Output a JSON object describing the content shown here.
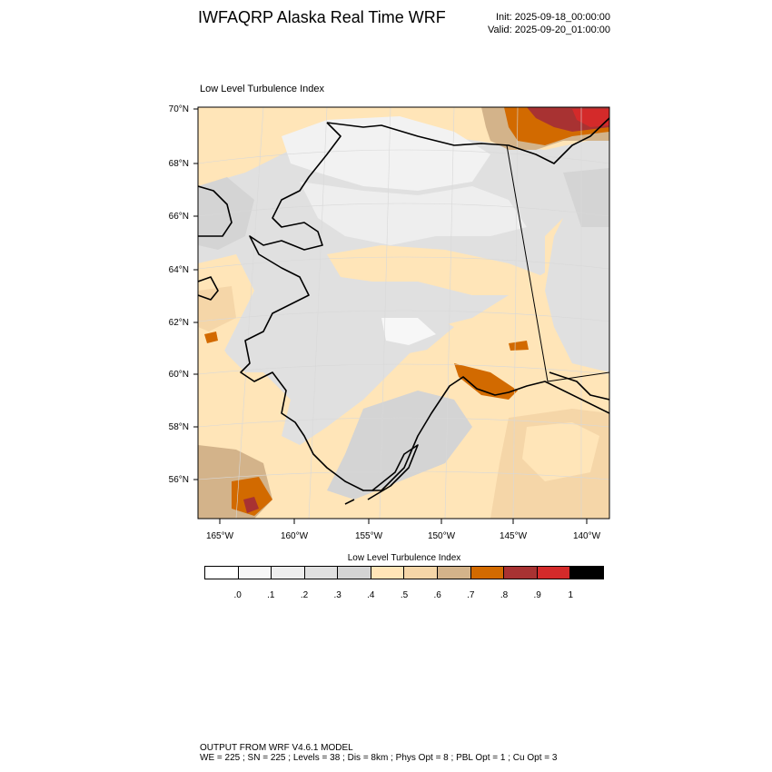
{
  "title": "IWFAQRP Alaska Real Time WRF",
  "init": "Init: 2025-09-18_00:00:00",
  "valid": "Valid: 2025-09-20_01:00:00",
  "map": {
    "field_title": "Low Level Turbulence Index",
    "lat_labels": [
      "70°N",
      "68°N",
      "66°N",
      "64°N",
      "62°N",
      "60°N",
      "58°N",
      "56°N"
    ],
    "lon_labels": [
      "165°W",
      "160°W",
      "155°W",
      "150°W",
      "145°W",
      "140°W"
    ]
  },
  "colorbar": {
    "title": "Low Level Turbulence Index",
    "colors": [
      "#ffffff",
      "#f7f7f7",
      "#eeeeee",
      "#e0e0e0",
      "#d4d4d4",
      "#ffe5b8",
      "#f5d6a8",
      "#d3b38a",
      "#d26a00",
      "#a83232",
      "#d42a2a",
      "#000000"
    ],
    "labels": [
      ".0",
      ".1",
      ".2",
      ".3",
      ".4",
      ".5",
      ".6",
      ".7",
      ".8",
      ".9",
      "1"
    ]
  },
  "footer": {
    "line1": "OUTPUT FROM WRF V4.6.1 MODEL",
    "line2": "WE = 225 ; SN = 225 ; Levels = 38 ; Dis = 8km ; Phys Opt = 8 ; PBL Opt = 1 ; Cu Opt = 3"
  }
}
